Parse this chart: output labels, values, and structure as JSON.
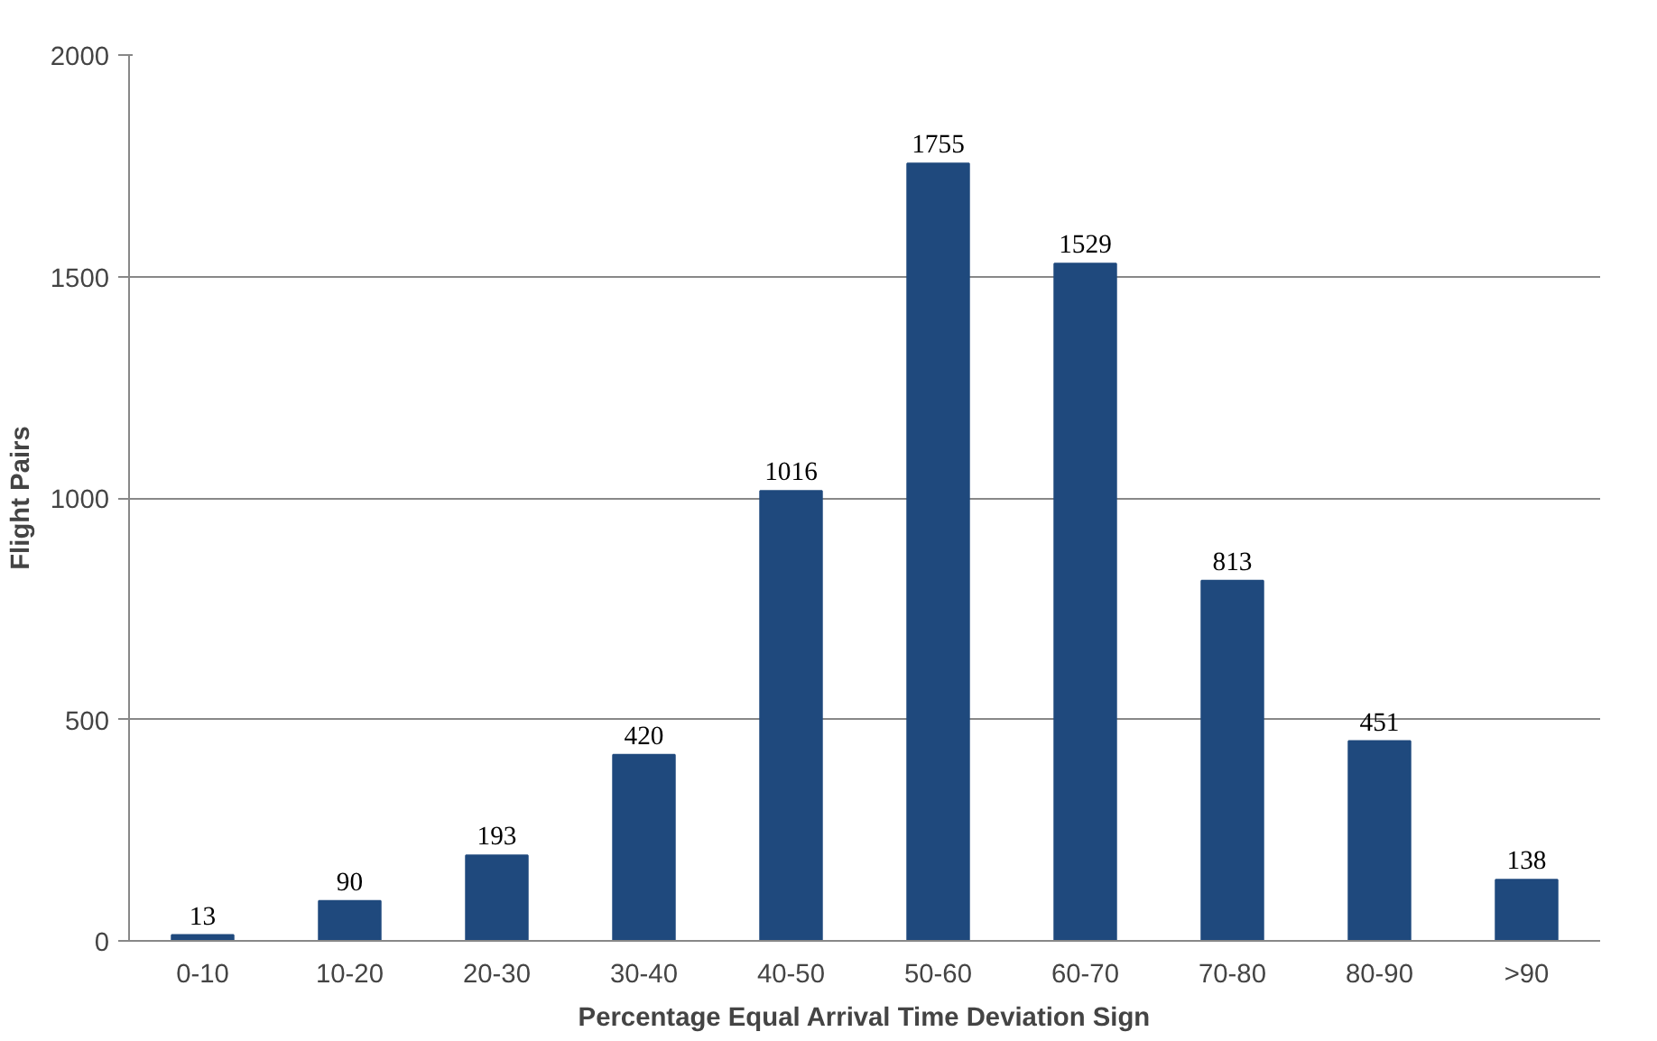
{
  "chart_data": {
    "type": "bar",
    "xlabel": "Percentage Equal Arrival Time Deviation Sign",
    "ylabel": "Flight Pairs",
    "categories": [
      "0-10",
      "10-20",
      "20-30",
      "30-40",
      "40-50",
      "50-60",
      "60-70",
      "70-80",
      "80-90",
      ">90"
    ],
    "values": [
      13,
      90,
      193,
      420,
      1016,
      1755,
      1529,
      813,
      451,
      138
    ],
    "color": "#1f497d",
    "ylim": [
      0,
      2000
    ],
    "yticks": [
      0,
      500,
      1000,
      1500,
      2000
    ],
    "grid": "y",
    "data_labels": true
  }
}
